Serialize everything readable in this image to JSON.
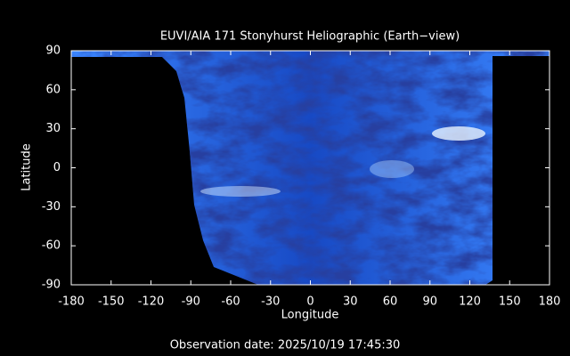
{
  "chart_data": {
    "type": "map",
    "title": "EUVI/AIA 171 Stonyhurst Heliographic (Earth−view)",
    "x_label": "Longitude",
    "y_label": "Latitude",
    "xlim": [
      -180,
      180
    ],
    "ylim": [
      -90,
      90
    ],
    "xticks": [
      -180,
      -150,
      -120,
      -90,
      -60,
      -30,
      0,
      30,
      60,
      90,
      120,
      150,
      180
    ],
    "yticks": [
      -90,
      -60,
      -30,
      0,
      30,
      60,
      90
    ],
    "footer": "Observation date: 2025/10/19 17:45:30"
  }
}
